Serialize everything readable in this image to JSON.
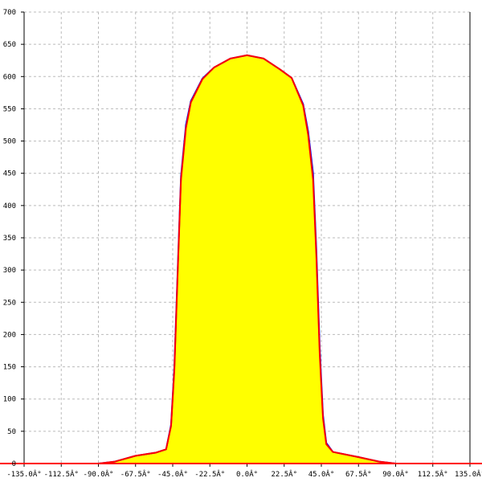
{
  "chart_data": {
    "type": "area",
    "title": "",
    "xlabel": "",
    "ylabel": "",
    "xlim": [
      -135,
      135
    ],
    "ylim": [
      0,
      700
    ],
    "grid": true,
    "x_ticks": [
      -135,
      -112.5,
      -90,
      -67.5,
      -45,
      -22.5,
      0,
      22.5,
      45,
      67.5,
      90,
      112.5,
      135
    ],
    "x_tick_labels": [
      "-135.0Â°",
      "-112.5Â°",
      "-90.0Â°",
      "-67.5Â°",
      "-45.0Â°",
      "-22.5Â°",
      "0.0Â°",
      "22.5Â°",
      "45.0Â°",
      "67.5Â°",
      "90.0Â°",
      "112.5Â°",
      "135.0Â°"
    ],
    "y_ticks": [
      0,
      50,
      100,
      150,
      200,
      250,
      300,
      350,
      400,
      450,
      500,
      550,
      600,
      650,
      700
    ],
    "y_tick_labels": [
      "0",
      "50",
      "100",
      "150",
      "200",
      "250",
      "300",
      "350",
      "400",
      "450",
      "500",
      "550",
      "600",
      "650",
      "700"
    ],
    "fill_color": "#ffff00",
    "series": [
      {
        "color": "#0000ff",
        "x": [
          -90,
          -80,
          -67.5,
          -55,
          -49,
          -46,
          -44,
          -42,
          -40,
          -37,
          -34,
          -27,
          -20,
          -10,
          0,
          10,
          20,
          27,
          34,
          37,
          40,
          42,
          44,
          46,
          48,
          52,
          67.5,
          80,
          90
        ],
        "y": [
          0,
          3,
          12,
          17,
          22,
          60,
          150,
          300,
          445,
          525,
          562,
          597,
          614,
          628,
          633,
          628,
          611,
          598,
          557,
          515,
          450,
          330,
          180,
          75,
          32,
          18,
          10,
          3,
          0
        ]
      },
      {
        "color": "#ff0000",
        "x": [
          -135,
          -90,
          -80,
          -67.5,
          -55,
          -49,
          -46,
          -44,
          -42,
          -40,
          -37,
          -34,
          -27,
          -20,
          -10,
          0,
          10,
          20,
          27,
          34,
          37,
          40,
          42,
          44,
          46,
          48,
          52,
          67.5,
          80,
          90,
          135
        ],
        "y": [
          0,
          0,
          3,
          12,
          17,
          22,
          58,
          145,
          295,
          440,
          520,
          560,
          596,
          614,
          628,
          633,
          628,
          611,
          598,
          555,
          510,
          440,
          320,
          170,
          70,
          30,
          18,
          10,
          3,
          0,
          0
        ]
      }
    ]
  }
}
